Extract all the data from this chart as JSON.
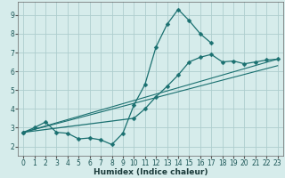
{
  "title": "",
  "xlabel": "Humidex (Indice chaleur)",
  "ylabel": "",
  "xlim": [
    -0.5,
    23.5
  ],
  "ylim": [
    1.5,
    9.7
  ],
  "xticks": [
    0,
    1,
    2,
    3,
    4,
    5,
    6,
    7,
    8,
    9,
    10,
    11,
    12,
    13,
    14,
    15,
    16,
    17,
    18,
    19,
    20,
    21,
    22,
    23
  ],
  "yticks": [
    2,
    3,
    4,
    5,
    6,
    7,
    8,
    9
  ],
  "bg_color": "#d6eceb",
  "grid_color": "#aecece",
  "line_color": "#1a7070",
  "series": [
    {
      "x": [
        0,
        1,
        2,
        3,
        4,
        5,
        6,
        7,
        8,
        9,
        10,
        11,
        12,
        13,
        14,
        15,
        16,
        17
      ],
      "y": [
        2.75,
        3.0,
        3.3,
        2.75,
        2.7,
        2.4,
        2.45,
        2.35,
        2.1,
        2.7,
        4.2,
        5.3,
        7.3,
        8.5,
        9.3,
        8.7,
        8.0,
        7.5
      ],
      "marker": "D",
      "markersize": 2.5,
      "lw": 0.9
    },
    {
      "x": [
        0,
        10,
        11,
        12,
        13,
        14,
        15,
        16,
        17,
        18,
        19,
        20,
        21,
        22,
        23
      ],
      "y": [
        2.75,
        3.5,
        4.0,
        4.65,
        5.2,
        5.8,
        6.5,
        6.75,
        6.9,
        6.5,
        6.55,
        6.4,
        6.5,
        6.6,
        6.65
      ],
      "marker": "D",
      "markersize": 2.5,
      "lw": 0.9
    },
    {
      "x": [
        0,
        23
      ],
      "y": [
        2.75,
        6.65
      ],
      "marker": null,
      "markersize": 0,
      "lw": 0.8
    },
    {
      "x": [
        0,
        23
      ],
      "y": [
        2.75,
        6.3
      ],
      "marker": null,
      "markersize": 0,
      "lw": 0.8
    }
  ],
  "tick_fontsize": 5.5,
  "xlabel_fontsize": 6.5,
  "xlabel_fontweight": "bold"
}
